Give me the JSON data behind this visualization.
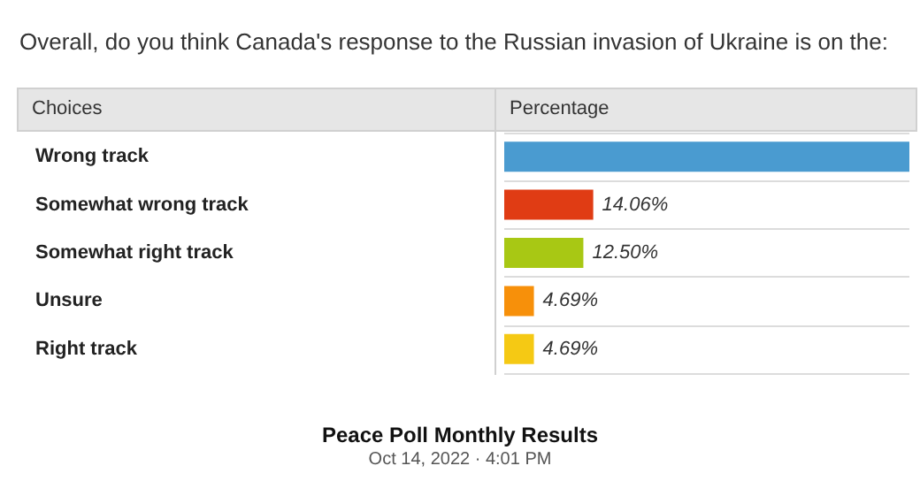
{
  "chart_data": {
    "type": "bar",
    "orientation": "horizontal",
    "title": "Overall, do you think Canada's response to the Russian invasion of Ukraine is on the:",
    "ylabel": "Choices",
    "xlabel": "Percentage",
    "categories": [
      "Wrong track",
      "Somewhat wrong track",
      "Somewhat right track",
      "Unsure",
      "Right track"
    ],
    "values": [
      64,
      14.06,
      12.5,
      4.69,
      4.69
    ],
    "value_labels": [
      null,
      "14.06%",
      "12.50%",
      "4.69%",
      "4.69%"
    ],
    "colors": [
      "#4a9bd0",
      "#e03c14",
      "#a8c814",
      "#f7900a",
      "#f5c914"
    ],
    "annotations": [
      "Peace Poll Monthly Results",
      "Oct 14, 2022 · 4:01 PM"
    ]
  }
}
